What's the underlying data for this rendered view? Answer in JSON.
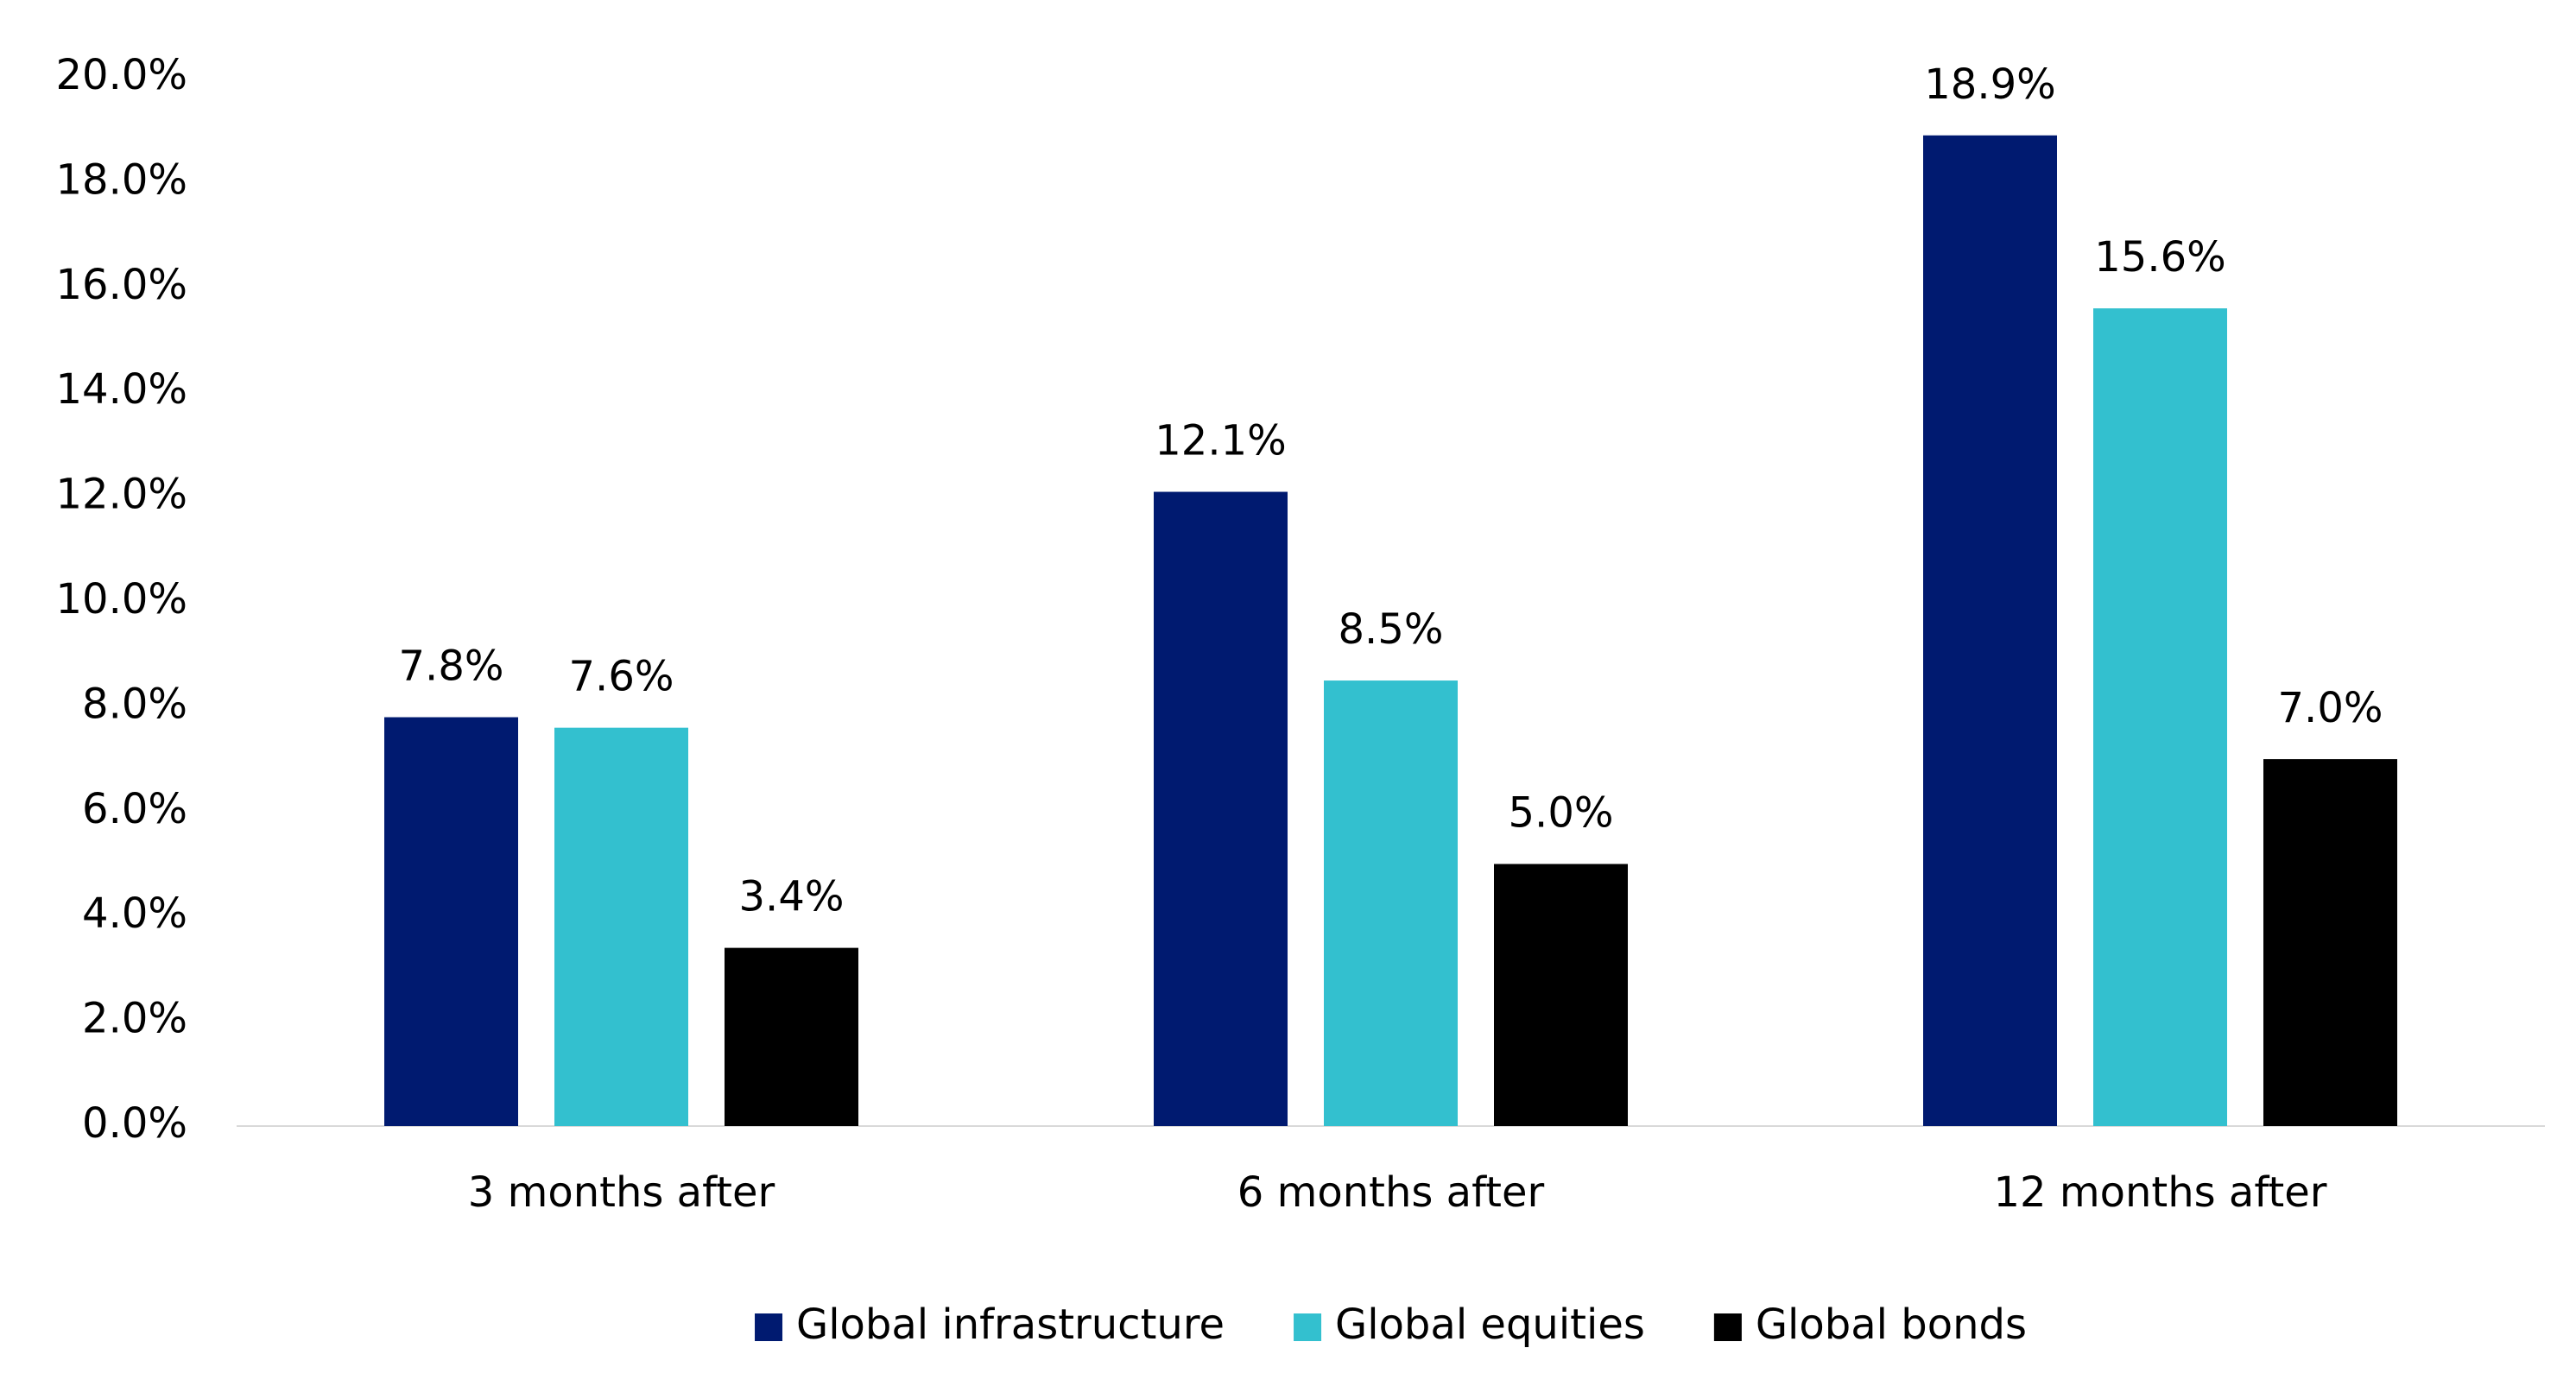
{
  "chart_data": {
    "type": "bar",
    "categories": [
      "3 months after",
      "6 months after",
      "12 months after"
    ],
    "series": [
      {
        "name": "Global infrastructure",
        "color": "#001a70",
        "values": [
          7.8,
          12.1,
          18.9
        ],
        "value_labels": [
          "7.8%",
          "12.1%",
          "18.9%"
        ]
      },
      {
        "name": "Global equities",
        "color": "#33c0cf",
        "values": [
          7.6,
          8.5,
          15.6
        ],
        "value_labels": [
          "7.6%",
          "8.5%",
          "15.6%"
        ]
      },
      {
        "name": "Global bonds",
        "color": "#000000",
        "values": [
          3.4,
          5.0,
          7.0
        ],
        "value_labels": [
          "3.4%",
          "5.0%",
          "7.0%"
        ]
      }
    ],
    "ylim": [
      0,
      20
    ],
    "yticks": [
      {
        "value": 0,
        "label": "0.0%"
      },
      {
        "value": 2,
        "label": "2.0%"
      },
      {
        "value": 4,
        "label": "4.0%"
      },
      {
        "value": 6,
        "label": "6.0%"
      },
      {
        "value": 8,
        "label": "8.0%"
      },
      {
        "value": 10,
        "label": "10.0%"
      },
      {
        "value": 12,
        "label": "12.0%"
      },
      {
        "value": 14,
        "label": "14.0%"
      },
      {
        "value": 16,
        "label": "16.0%"
      },
      {
        "value": 18,
        "label": "18.0%"
      },
      {
        "value": 20,
        "label": "20.0%"
      }
    ],
    "grid": false,
    "legend": "bottom"
  }
}
